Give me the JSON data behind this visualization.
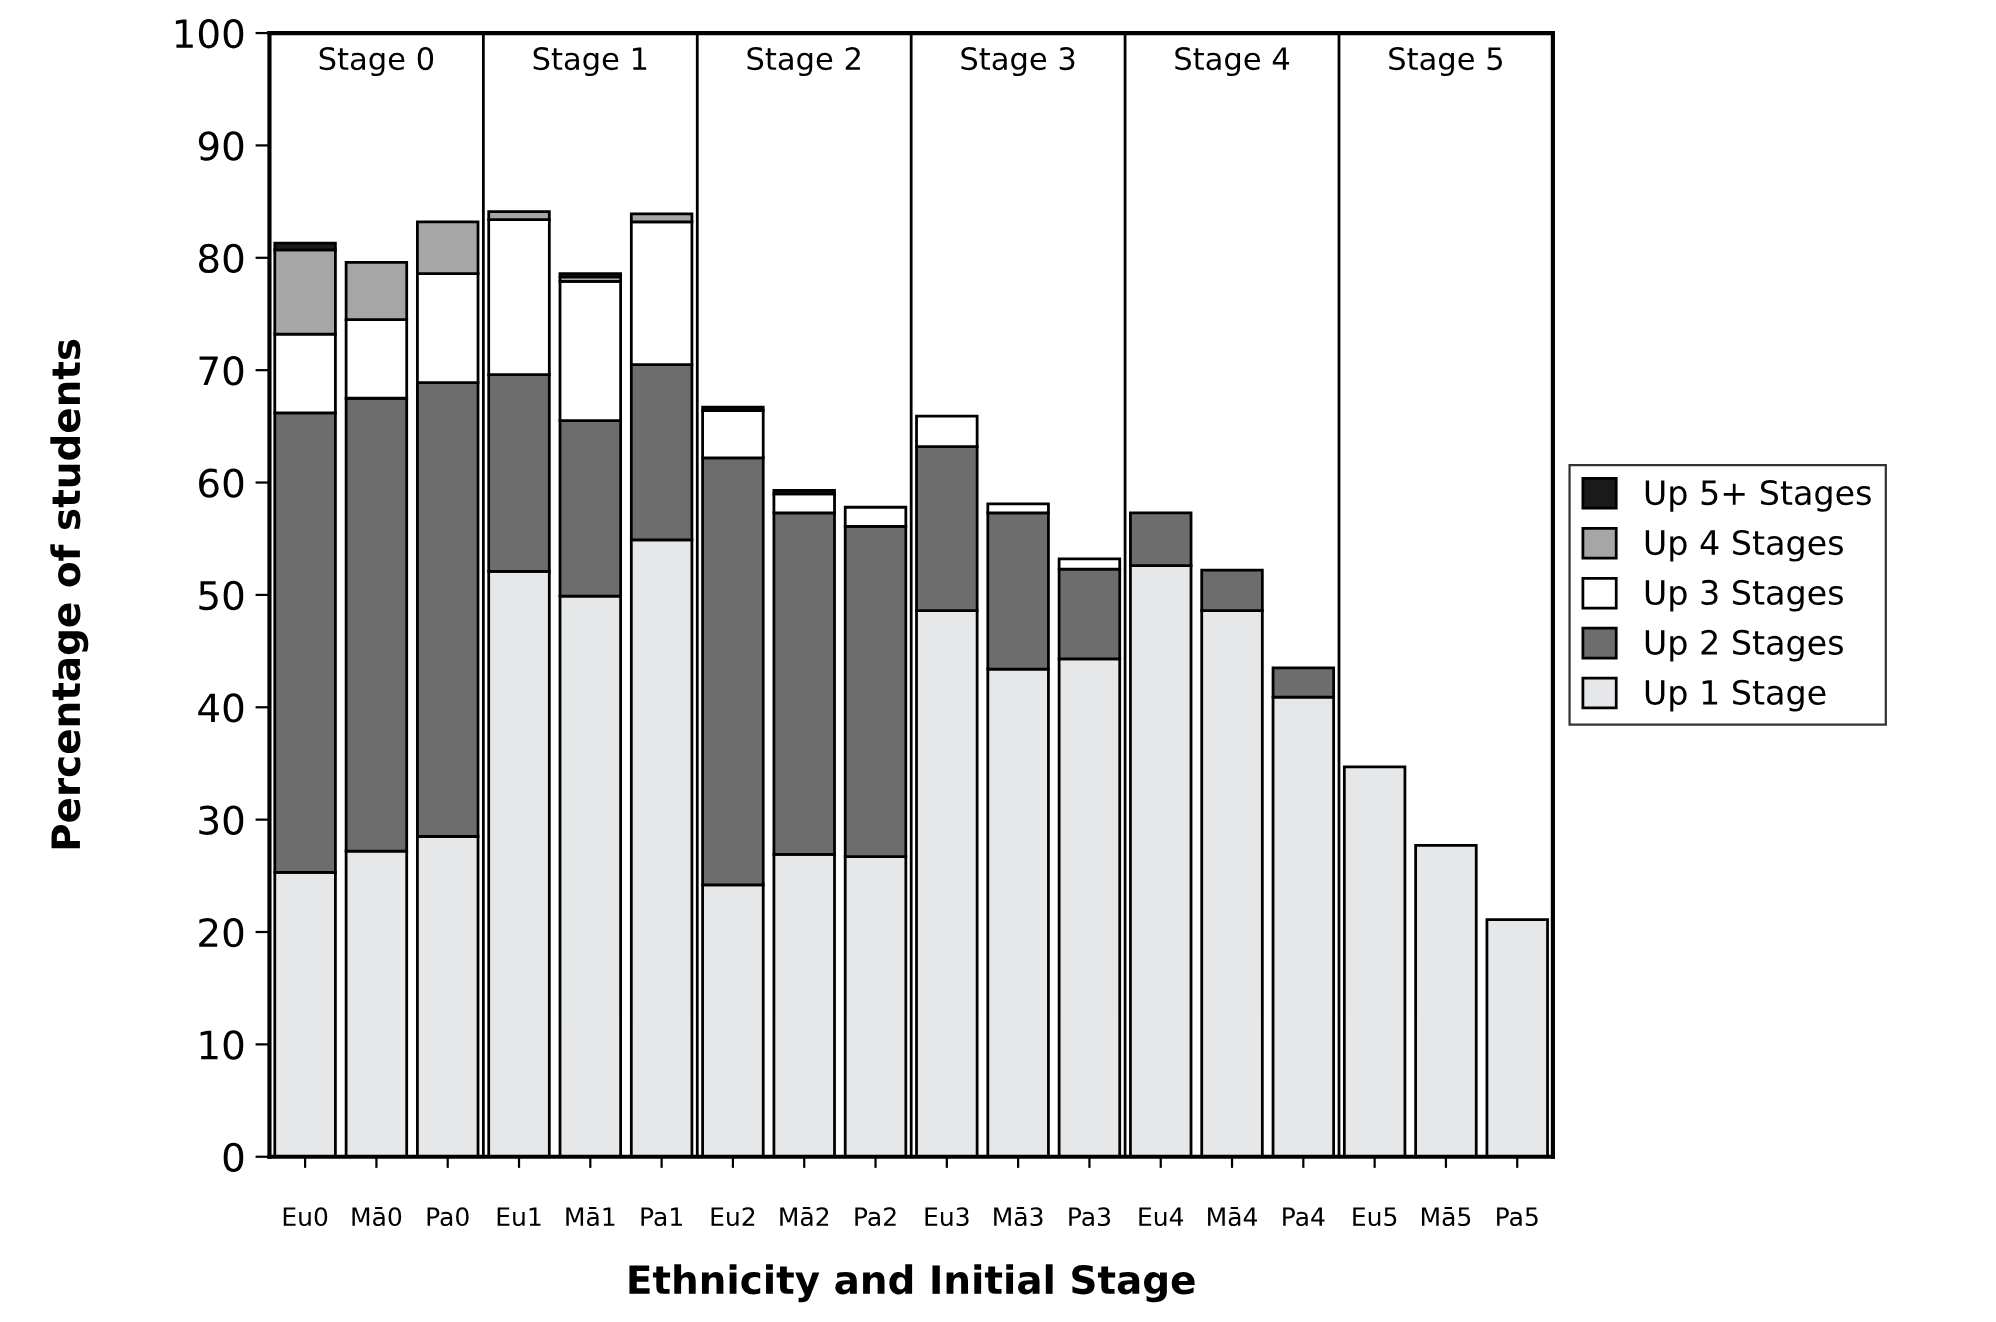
{
  "chart_data": {
    "type": "bar",
    "stacked": true,
    "xlabel": "Ethnicity and Initial Stage",
    "ylabel": "Percentage of students",
    "categories": [
      "Eu0",
      "Mā0",
      "Pa0",
      "Eu1",
      "Mā1",
      "Pa1",
      "Eu2",
      "Mā2",
      "Pa2",
      "Eu3",
      "Mā3",
      "Pa3",
      "Eu4",
      "Mā4",
      "Pa4",
      "Eu5",
      "Mā5",
      "Pa5"
    ],
    "series": [
      {
        "name": "Up 1 Stage",
        "color": "#e6e7e9",
        "values": [
          25.3,
          27.2,
          28.5,
          52.1,
          49.9,
          54.9,
          24.2,
          26.9,
          26.7,
          48.6,
          43.4,
          44.3,
          52.6,
          48.6,
          40.9,
          34.7,
          27.7,
          21.1
        ]
      },
      {
        "name": "Up 2 Stages",
        "color": "#6d6d6d",
        "values": [
          40.9,
          40.3,
          40.4,
          17.5,
          15.6,
          15.6,
          38.0,
          30.4,
          29.4,
          14.6,
          13.9,
          8.0,
          4.7,
          3.6,
          2.6,
          null,
          null,
          null
        ]
      },
      {
        "name": "Up 3 Stages",
        "color": "#ffffff",
        "values": [
          7.0,
          7.0,
          9.7,
          13.8,
          12.4,
          12.7,
          4.2,
          1.7,
          1.7,
          2.7,
          0.8,
          0.9,
          null,
          null,
          null,
          null,
          null,
          null
        ]
      },
      {
        "name": "Up 4 Stages",
        "color": "#a6a6a6",
        "values": [
          7.5,
          5.1,
          4.6,
          0.7,
          0.4,
          0.7,
          null,
          null,
          null,
          null,
          null,
          null,
          null,
          null,
          null,
          null,
          null,
          null
        ]
      },
      {
        "name": "Up 5+ Stages",
        "color": "#1a1a1a",
        "values": [
          0.6,
          null,
          null,
          null,
          0.3,
          null,
          0.3,
          0.3,
          null,
          null,
          null,
          null,
          null,
          null,
          null,
          null,
          null,
          null
        ]
      }
    ],
    "annotations": [
      "Stage 0",
      "Stage 1",
      "Stage 2",
      "Stage 3",
      "Stage 4",
      "Stage 5"
    ],
    "ylim": [
      0,
      100
    ],
    "yticks": [
      0,
      10,
      20,
      30,
      40,
      50,
      60,
      70,
      80,
      90,
      100
    ],
    "grid": false,
    "legend": "right"
  }
}
